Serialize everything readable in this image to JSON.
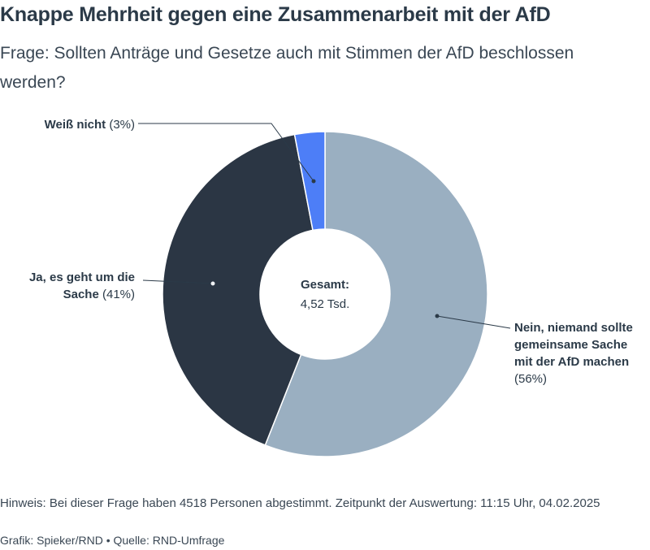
{
  "title": "Knappe Mehrheit gegen eine Zusammenarbeit mit der AfD",
  "subtitle": "Frage: Sollten Anträge und Gesetze auch mit Stimmen der AfD beschlossen werden?",
  "center": {
    "title": "Gesamt:",
    "value": "4,52 Tsd."
  },
  "labels": {
    "weiss": {
      "name": "Weiß nicht",
      "pct": "(3%)"
    },
    "ja": {
      "name_line1": "Ja, es geht um die",
      "name_line2": "Sache",
      "pct": "(41%)"
    },
    "nein": {
      "name_line1": "Nein, niemand sollte",
      "name_line2": "gemeinsame Sache",
      "name_line3": "mit der AfD machen",
      "pct": "(56%)"
    }
  },
  "note": "Hinweis: Bei dieser Frage haben 4518 Personen abgestimmt. Zeitpunkt der Auswertung: 11:15 Uhr, 04.02.2025",
  "credit": "Grafik: Spieker/RND • Quelle: RND-Umfrage",
  "chart_data": {
    "type": "pie",
    "variant": "donut",
    "title": "Knappe Mehrheit gegen eine Zusammenarbeit mit der AfD",
    "total": "4,52 Tsd.",
    "slices": [
      {
        "label": "Nein, niemand sollte gemeinsame Sache mit der AfD machen",
        "value": 56,
        "color": "#9aafc1"
      },
      {
        "label": "Ja, es geht um die Sache",
        "value": 41,
        "color": "#2b3644"
      },
      {
        "label": "Weiß nicht",
        "value": 3,
        "color": "#4d7ef7"
      }
    ]
  }
}
